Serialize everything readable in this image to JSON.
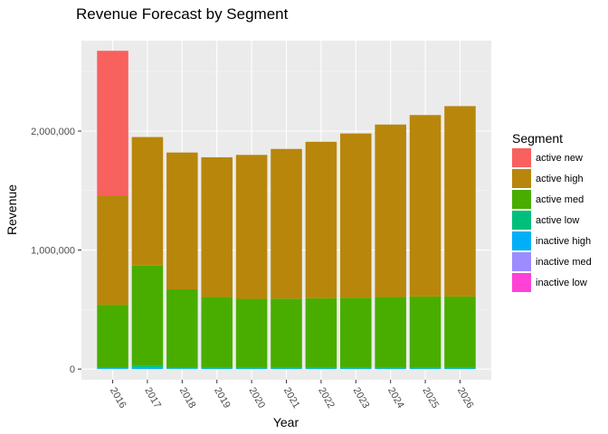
{
  "chart_data": {
    "type": "bar",
    "stacked": true,
    "title": "Revenue Forecast by Segment",
    "xlabel": "Year",
    "ylabel": "Revenue",
    "categories": [
      "2016",
      "2017",
      "2018",
      "2019",
      "2020",
      "2021",
      "2022",
      "2023",
      "2024",
      "2025",
      "2026"
    ],
    "ylim": [
      -90000,
      2760000
    ],
    "yticks": [
      0,
      1000000,
      2000000
    ],
    "ytick_labels": [
      "0",
      "1,000,000",
      "2,000,000"
    ],
    "grid": true,
    "legend": {
      "title": "Segment",
      "placement": "right"
    },
    "series": [
      {
        "name": "inactive low",
        "color": "#FF41D7",
        "values": [
          0,
          0,
          0,
          0,
          0,
          0,
          0,
          0,
          0,
          0,
          0
        ]
      },
      {
        "name": "inactive med",
        "color": "#9C8CFF",
        "values": [
          0,
          0,
          0,
          0,
          0,
          0,
          0,
          0,
          0,
          0,
          0
        ]
      },
      {
        "name": "inactive high",
        "color": "#00B0F6",
        "values": [
          8000,
          15000,
          6000,
          5000,
          5000,
          5000,
          5000,
          5000,
          5000,
          5000,
          5000
        ]
      },
      {
        "name": "active low",
        "color": "#00BF7D",
        "values": [
          8000,
          15000,
          6000,
          5000,
          5000,
          5000,
          5000,
          5000,
          5000,
          5000,
          5000
        ]
      },
      {
        "name": "active med",
        "color": "#49AD00",
        "values": [
          524000,
          840000,
          658000,
          595000,
          580000,
          582000,
          585000,
          590000,
          595000,
          600000,
          600000
        ]
      },
      {
        "name": "active high",
        "color": "#B8860B",
        "values": [
          920000,
          1080000,
          1150000,
          1175000,
          1210000,
          1258000,
          1315000,
          1380000,
          1450000,
          1525000,
          1600000
        ]
      },
      {
        "name": "active new",
        "color": "#F8615D",
        "values": [
          1215000,
          0,
          0,
          0,
          0,
          0,
          0,
          0,
          0,
          0,
          0
        ]
      }
    ]
  }
}
